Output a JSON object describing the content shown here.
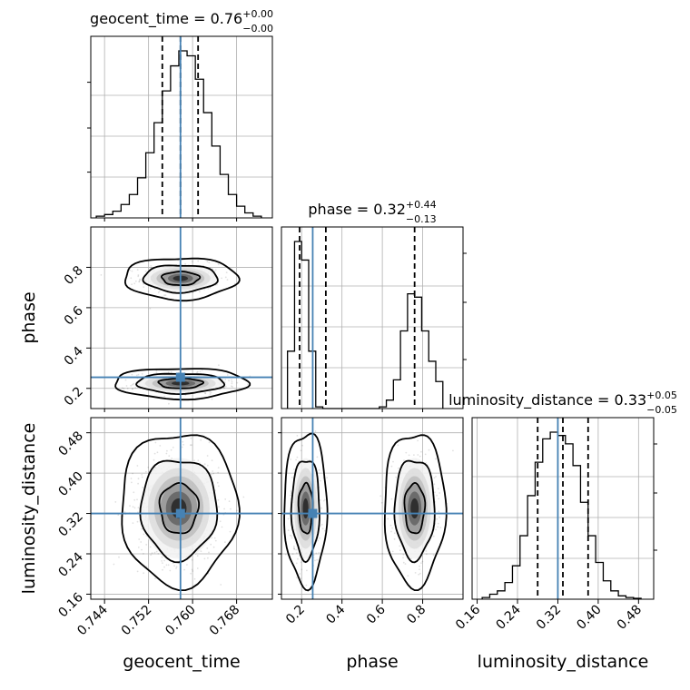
{
  "chart_data": {
    "type": "corner",
    "parameters": [
      {
        "name": "geocent_time",
        "median_label": "0.76",
        "err_plus": "+0.00",
        "err_minus": "−0.00",
        "range": [
          0.7415,
          0.7745
        ],
        "ticks": [
          0.744,
          0.752,
          0.76,
          0.768
        ],
        "tick_labels": [
          "0.744",
          "0.752",
          "0.760",
          "0.768"
        ],
        "quantiles": [
          0.7545,
          0.7578,
          0.761
        ],
        "truth": 0.7578
      },
      {
        "name": "phase",
        "median_label": "0.32",
        "err_plus": "+0.44",
        "err_minus": "−0.13",
        "range": [
          0.1,
          1.0
        ],
        "ticks": [
          0.2,
          0.4,
          0.6,
          0.8
        ],
        "tick_labels": [
          "0.2",
          "0.4",
          "0.6",
          "0.8"
        ],
        "quantiles": [
          0.19,
          0.32,
          0.76
        ],
        "truth": 0.255
      },
      {
        "name": "luminosity_distance",
        "median_label": "0.33",
        "err_plus": "+0.05",
        "err_minus": "−0.05",
        "range": [
          0.15,
          0.51
        ],
        "ticks": [
          0.16,
          0.24,
          0.32,
          0.4,
          0.48
        ],
        "tick_labels": [
          "0.16",
          "0.24",
          "0.32",
          "0.40",
          "0.48"
        ],
        "quantiles": [
          0.28,
          0.33,
          0.38
        ],
        "truth": 0.32
      }
    ],
    "histograms": [
      {
        "param": "geocent_time",
        "edges": [
          0.7425,
          0.744,
          0.7455,
          0.747,
          0.7485,
          0.75,
          0.7515,
          0.753,
          0.7545,
          0.756,
          0.7575,
          0.759,
          0.7605,
          0.762,
          0.7635,
          0.765,
          0.7665,
          0.768,
          0.7695,
          0.771,
          0.7725
        ],
        "counts": [
          0.01,
          0.02,
          0.04,
          0.08,
          0.14,
          0.24,
          0.39,
          0.57,
          0.76,
          0.91,
          1.0,
          0.97,
          0.83,
          0.63,
          0.43,
          0.26,
          0.14,
          0.07,
          0.03,
          0.01
        ]
      },
      {
        "param": "phase",
        "edges": [
          0.13,
          0.165,
          0.2,
          0.235,
          0.27,
          0.305,
          0.34,
          0.375,
          0.41,
          0.445,
          0.48,
          0.515,
          0.55,
          0.585,
          0.62,
          0.655,
          0.69,
          0.725,
          0.76,
          0.795,
          0.83,
          0.865,
          0.9
        ],
        "counts": [
          0.34,
          0.99,
          0.88,
          0.34,
          0.01,
          0,
          0,
          0,
          0,
          0,
          0,
          0,
          0.0,
          0.01,
          0.05,
          0.17,
          0.46,
          0.68,
          0.66,
          0.46,
          0.28,
          0.16
        ]
      },
      {
        "param": "luminosity_distance",
        "edges": [
          0.17,
          0.185,
          0.2,
          0.215,
          0.23,
          0.245,
          0.26,
          0.275,
          0.29,
          0.305,
          0.32,
          0.335,
          0.35,
          0.365,
          0.38,
          0.395,
          0.41,
          0.425,
          0.44,
          0.455,
          0.47,
          0.485
        ],
        "counts": [
          0.01,
          0.03,
          0.05,
          0.1,
          0.2,
          0.38,
          0.62,
          0.82,
          0.96,
          1.0,
          0.98,
          0.93,
          0.8,
          0.58,
          0.38,
          0.22,
          0.11,
          0.05,
          0.02,
          0.01,
          0.005
        ]
      }
    ],
    "density_2d": [
      {
        "x": "geocent_time",
        "y": "phase",
        "modes": [
          {
            "cx": 0.7578,
            "cy": 0.745,
            "sx": 0.0034,
            "sy": 0.034,
            "weight": 0.5
          },
          {
            "cx": 0.7578,
            "cy": 0.225,
            "sx": 0.004,
            "sy": 0.025,
            "weight": 0.5
          }
        ]
      },
      {
        "x": "geocent_time",
        "y": "luminosity_distance",
        "modes": [
          {
            "cx": 0.7575,
            "cy": 0.33,
            "sx": 0.0035,
            "sy": 0.05,
            "weight": 1.0
          }
        ]
      },
      {
        "x": "phase",
        "y": "luminosity_distance",
        "modes": [
          {
            "cx": 0.22,
            "cy": 0.33,
            "sx": 0.035,
            "sy": 0.05,
            "weight": 0.55
          },
          {
            "cx": 0.76,
            "cy": 0.33,
            "sx": 0.05,
            "sy": 0.05,
            "weight": 0.45
          }
        ]
      }
    ],
    "colors": {
      "truth": "#4682b4",
      "hist": "#000000",
      "contour": "#000000",
      "grid": "#b0b0b0"
    },
    "grid": true,
    "contour_levels": [
      0.39,
      0.86,
      0.99
    ]
  }
}
